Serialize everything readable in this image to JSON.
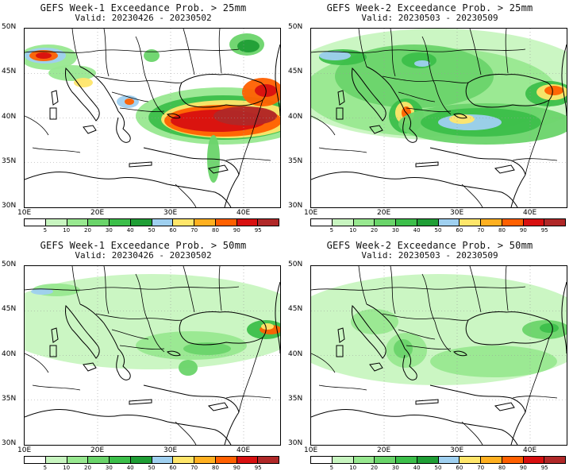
{
  "panels": [
    {
      "title": "GEFS Week-1 Exceedance Prob. > 25mm",
      "valid": "Valid: 20230426 - 20230502"
    },
    {
      "title": "GEFS Week-2 Exceedance Prob. > 25mm",
      "valid": "Valid: 20230503 - 20230509"
    },
    {
      "title": "GEFS Week-1 Exceedance Prob. > 50mm",
      "valid": "Valid: 20230426 - 20230502"
    },
    {
      "title": "GEFS Week-2 Exceedance Prob. > 50mm",
      "valid": "Valid: 20230503 - 20230509"
    }
  ],
  "axes": {
    "lat_labels": [
      "50N",
      "45N",
      "40N",
      "35N",
      "30N"
    ],
    "lon_labels": [
      "10E",
      "20E",
      "30E",
      "40E"
    ]
  },
  "colorbar": {
    "labels": [
      "5",
      "10",
      "20",
      "30",
      "40",
      "50",
      "60",
      "70",
      "80",
      "90",
      "95"
    ],
    "colors": [
      "#ffffff",
      "#c8f5c0",
      "#98e890",
      "#6ad46a",
      "#3cbf4a",
      "#1f9e35",
      "#9fd0f0",
      "#ffe66a",
      "#ffb020",
      "#ff6000",
      "#d81010",
      "#b02828"
    ]
  }
}
